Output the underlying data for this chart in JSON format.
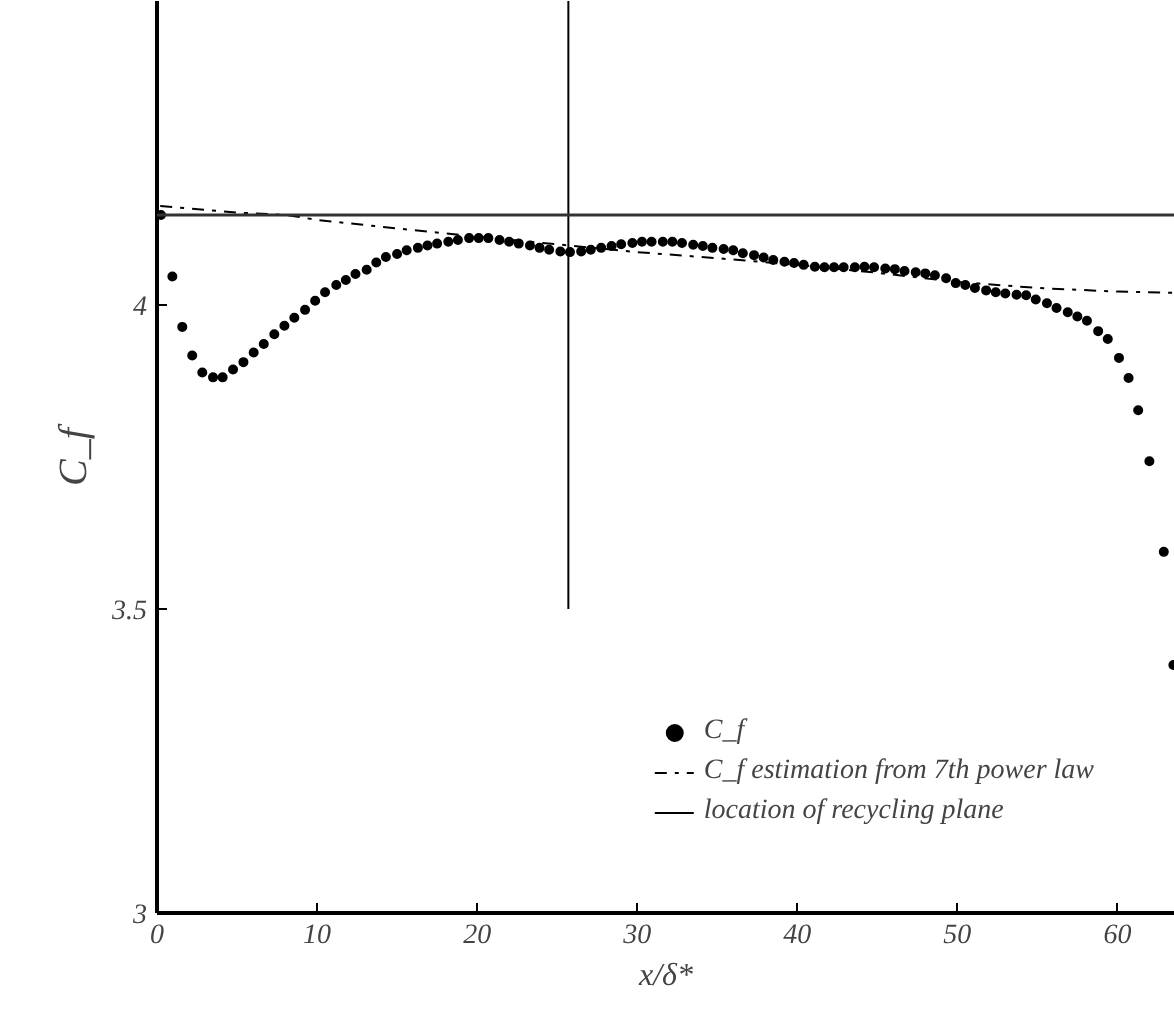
{
  "chart_data": {
    "type": "scatter",
    "xlabel": "x/δ*",
    "ylabel": "C_f",
    "xlim": [
      0,
      63.6
    ],
    "ylim": [
      3,
      4.5
    ],
    "xticks": [
      0,
      10,
      20,
      30,
      40,
      50,
      60
    ],
    "yticks": [
      3,
      3.5,
      4
    ],
    "grid": false,
    "legend": "bottom right",
    "series": [
      {
        "name": "C_f",
        "marker": "circle",
        "color": "#000000",
        "x": [
          0.25,
          0.96,
          1.58,
          2.2,
          2.83,
          3.5,
          4.1,
          4.75,
          5.4,
          6.04,
          6.67,
          7.33,
          7.96,
          8.58,
          9.25,
          9.88,
          10.5,
          11.2,
          11.8,
          12.4,
          13.1,
          13.7,
          14.3,
          15.0,
          15.6,
          16.3,
          16.9,
          17.5,
          18.2,
          18.8,
          19.5,
          20.1,
          20.7,
          21.4,
          22.0,
          22.6,
          23.3,
          23.9,
          24.5,
          25.2,
          25.8,
          26.5,
          27.1,
          27.75,
          28.4,
          29.0,
          29.7,
          30.3,
          30.9,
          31.6,
          32.2,
          32.8,
          33.5,
          34.1,
          34.7,
          35.4,
          36.0,
          36.6,
          37.3,
          37.9,
          38.5,
          39.2,
          39.8,
          40.4,
          41.1,
          41.7,
          42.3,
          42.9,
          43.6,
          44.2,
          44.8,
          45.5,
          46.1,
          46.7,
          47.4,
          48.0,
          48.6,
          49.3,
          49.9,
          50.5,
          51.1,
          51.8,
          52.4,
          53.0,
          53.7,
          54.3,
          54.9,
          55.6,
          56.2,
          56.9,
          57.5,
          58.1,
          58.8,
          59.4,
          60.1,
          60.7,
          61.3,
          62.0,
          62.9,
          63.5
        ],
        "values": [
          4.148,
          4.047,
          3.964,
          3.917,
          3.889,
          3.881,
          3.881,
          3.894,
          3.906,
          3.922,
          3.936,
          3.952,
          3.966,
          3.979,
          3.992,
          4.007,
          4.021,
          4.033,
          4.041,
          4.051,
          4.058,
          4.07,
          4.079,
          4.084,
          4.09,
          4.094,
          4.098,
          4.101,
          4.104,
          4.107,
          4.11,
          4.11,
          4.11,
          4.107,
          4.104,
          4.101,
          4.098,
          4.094,
          4.091,
          4.088,
          4.087,
          4.088,
          4.091,
          4.094,
          4.097,
          4.1,
          4.102,
          4.104,
          4.104,
          4.104,
          4.104,
          4.102,
          4.099,
          4.097,
          4.094,
          4.092,
          4.09,
          4.085,
          4.082,
          4.078,
          4.074,
          4.071,
          4.069,
          4.066,
          4.063,
          4.062,
          4.062,
          4.062,
          4.062,
          4.063,
          4.062,
          4.06,
          4.059,
          4.056,
          4.054,
          4.052,
          4.049,
          4.044,
          4.036,
          4.033,
          4.028,
          4.024,
          4.021,
          4.019,
          4.017,
          4.016,
          4.009,
          4.003,
          3.995,
          3.988,
          3.981,
          3.974,
          3.957,
          3.944,
          3.913,
          3.88,
          3.827,
          3.743,
          3.594,
          3.408
        ]
      },
      {
        "name": "C_f estimation from 7th power law",
        "type": "line",
        "line_style": "dashdot",
        "marker": "none",
        "color": "#000000",
        "x": [
          0.2,
          5,
          8.1,
          10,
          15,
          19,
          25.7,
          30,
          35,
          40,
          45,
          50,
          55,
          60,
          63.6
        ],
        "values": [
          4.163,
          4.152,
          4.148,
          4.14,
          4.126,
          4.115,
          4.098,
          4.087,
          4.077,
          4.066,
          4.053,
          4.038,
          4.028,
          4.022,
          4.02
        ]
      },
      {
        "name": "location of recycling plane",
        "type": "line",
        "line_style": "solid",
        "marker": "none",
        "color": "#000000",
        "x": [
          25.7,
          25.7
        ],
        "values": [
          3.5,
          4.5
        ]
      }
    ],
    "ref_lines": [
      {
        "axis": "y",
        "value": 4.148,
        "color": "#333333",
        "line_style": "solid"
      }
    ]
  }
}
